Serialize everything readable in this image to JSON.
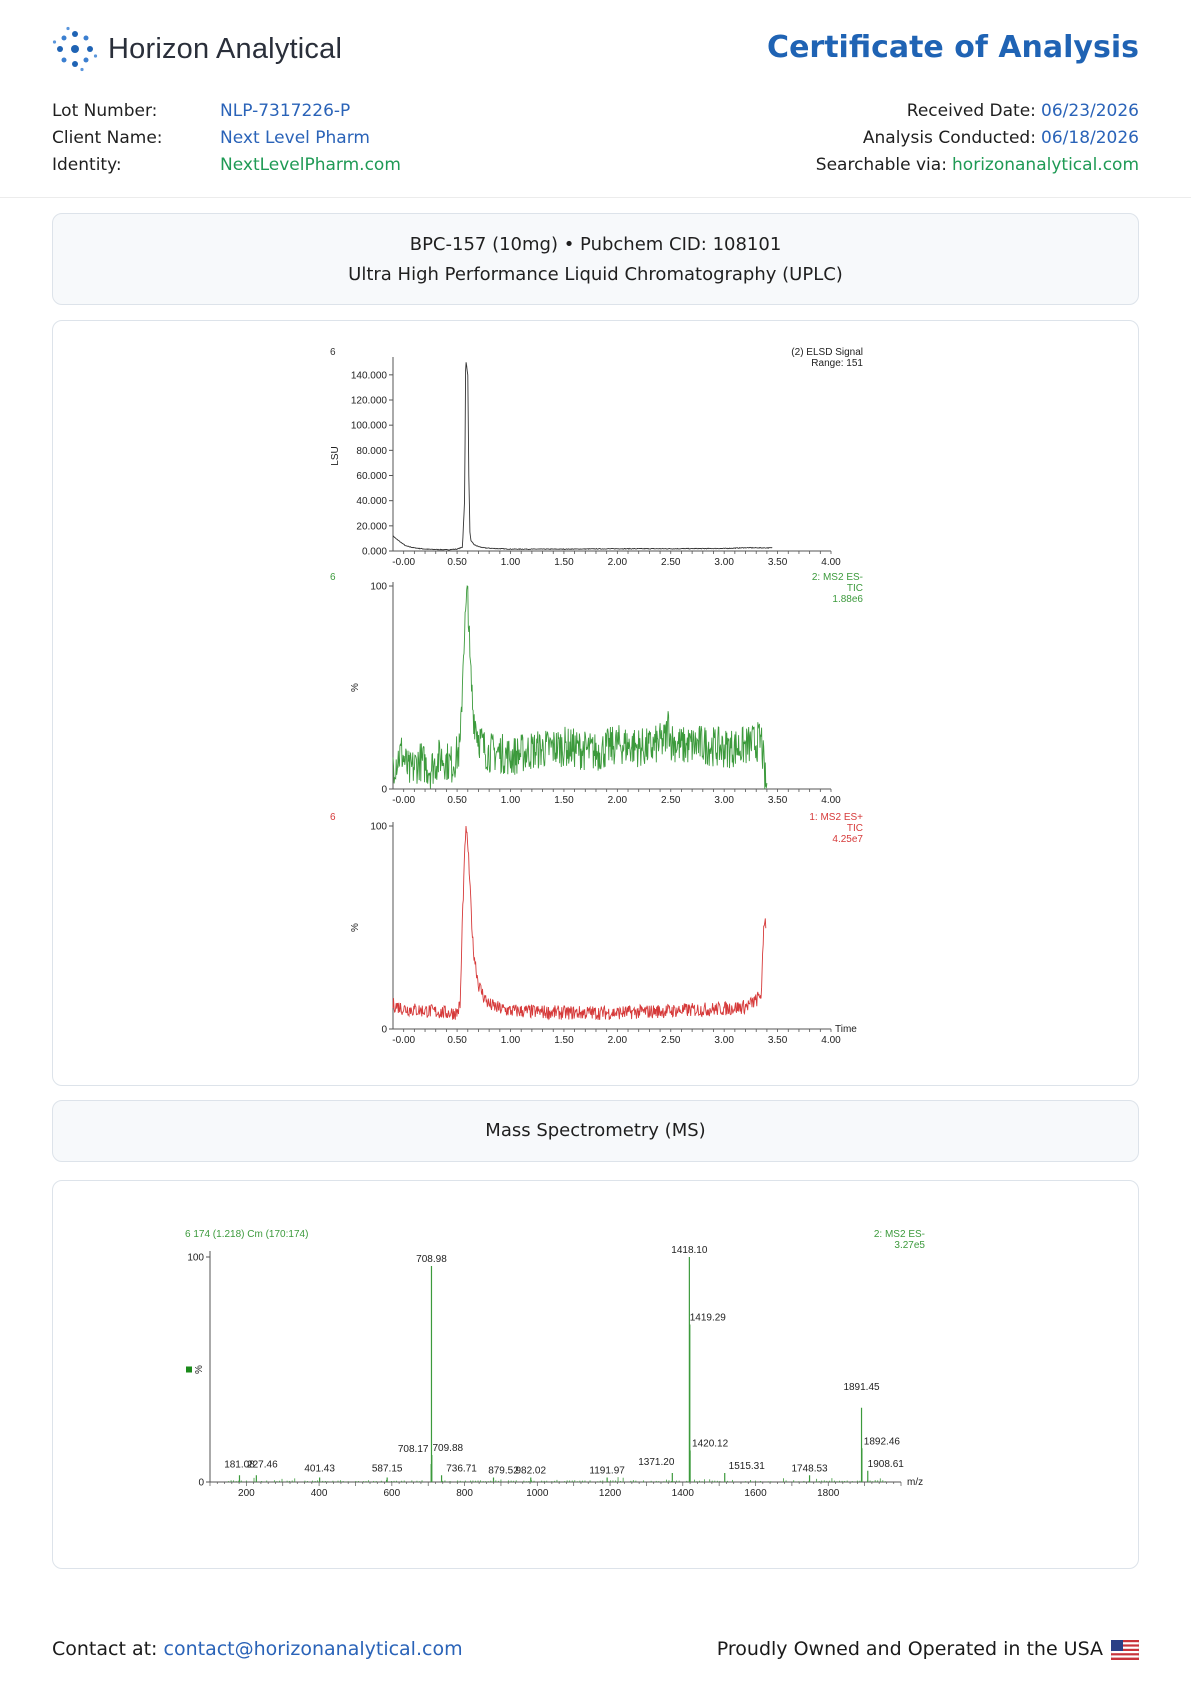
{
  "header": {
    "company_name": "Horizon Analytical",
    "document_title": "Certificate of Analysis",
    "brand_color": "#1f63b4"
  },
  "details": {
    "lot_number_label": "Lot Number:",
    "lot_number": "NLP-7317226-P",
    "client_name_label": "Client Name:",
    "client_name": "Next Level Pharm",
    "identity_label": "Identity:",
    "identity": "NextLevelPharm.com",
    "received_date_label": "Received Date:",
    "received_date": "06/23/2026",
    "analysis_conducted_label": "Analysis Conducted:",
    "analysis_conducted": "06/18/2026",
    "searchable_label": "Searchable via:",
    "searchable": "horizonanalytical.com"
  },
  "uplc_section": {
    "compound_line": "BPC-157 (10mg) • Pubchem CID: 108101",
    "method_line": "Ultra High Performance Liquid Chromatography (UPLC)"
  },
  "ms_section": {
    "title": "Mass Spectrometry (MS)"
  },
  "footer": {
    "contact_label": "Contact at:",
    "contact_email": "contact@horizonanalytical.com",
    "origin_text": "Proudly Owned and Operated in the USA",
    "flag_icon": "us-flag-icon"
  },
  "chart_data": [
    {
      "type": "line",
      "trace_number": "6",
      "legend_lines": [
        "(2) ELSD Signal",
        "Range: 151"
      ],
      "ylabel": "LSU",
      "ylim": [
        0,
        151000
      ],
      "xlim": [
        -0.1,
        4.0
      ],
      "ytick_labels": [
        "0.000",
        "20.000",
        "40.000",
        "60.000",
        "80.000",
        "100.000",
        "120.000",
        "140.000"
      ],
      "ytick_values": [
        0,
        20000,
        40000,
        60000,
        80000,
        100000,
        120000,
        140000
      ],
      "xtick_labels": [
        "-0.00",
        "0.50",
        "1.00",
        "1.50",
        "2.00",
        "2.50",
        "3.00",
        "3.50",
        "4.00"
      ],
      "color": "#333333",
      "x": [
        -0.1,
        -0.06,
        -0.02,
        0.02,
        0.1,
        0.2,
        0.3,
        0.4,
        0.5,
        0.55,
        0.57,
        0.58,
        0.585,
        0.6,
        0.61,
        0.62,
        0.63,
        0.66,
        0.7,
        0.75,
        0.85,
        1.0,
        1.5,
        2.0,
        2.5,
        3.0,
        3.2,
        3.35,
        3.45
      ],
      "y": [
        12000,
        9000,
        6500,
        4000,
        2500,
        1500,
        1200,
        1000,
        1500,
        3000,
        40000,
        148000,
        150000,
        140000,
        60000,
        15000,
        8000,
        5000,
        3500,
        2500,
        2000,
        1500,
        1500,
        1800,
        1800,
        2000,
        2600,
        2500,
        2500
      ]
    },
    {
      "type": "line",
      "trace_number": "6",
      "legend_lines": [
        "2: MS2 ES-",
        "TIC",
        "1.88e6"
      ],
      "ylabel": "%",
      "ylim": [
        0,
        100
      ],
      "xlim": [
        -0.1,
        4.0
      ],
      "ytick_labels": [
        "0",
        "100"
      ],
      "ytick_values": [
        0,
        100
      ],
      "xtick_labels": [
        "-0.00",
        "0.50",
        "1.00",
        "1.50",
        "2.00",
        "2.50",
        "3.00",
        "3.50",
        "4.00"
      ],
      "color": "#3c9a3c",
      "x": [
        -0.1,
        -0.02,
        0.05,
        0.15,
        0.25,
        0.35,
        0.45,
        0.53,
        0.56,
        0.58,
        0.6,
        0.62,
        0.65,
        0.7,
        0.75,
        0.8,
        0.9,
        1.0,
        1.2,
        1.5,
        1.8,
        2.0,
        2.3,
        2.45,
        2.48,
        2.5,
        2.6,
        2.8,
        3.0,
        3.2,
        3.35,
        3.38,
        3.4
      ],
      "y": [
        12,
        18,
        8,
        14,
        10,
        16,
        12,
        20,
        70,
        85,
        99,
        62,
        38,
        26,
        20,
        18,
        18,
        16,
        19,
        21,
        18,
        22,
        20,
        24,
        33,
        24,
        21,
        22,
        20,
        21,
        24,
        5,
        0
      ]
    },
    {
      "type": "line",
      "trace_number": "6",
      "legend_lines": [
        "1: MS2 ES+",
        "TIC",
        "4.25e7"
      ],
      "ylabel": "%",
      "ylim": [
        0,
        100
      ],
      "xlim": [
        -0.1,
        4.0
      ],
      "xlabel": "Time",
      "ytick_labels": [
        "0",
        "100"
      ],
      "ytick_values": [
        0,
        100
      ],
      "xtick_labels": [
        "-0.00",
        "0.50",
        "1.00",
        "1.50",
        "2.00",
        "2.50",
        "3.00",
        "3.50",
        "4.00"
      ],
      "color": "#d63a3a",
      "x": [
        -0.1,
        0.0,
        0.2,
        0.4,
        0.5,
        0.53,
        0.55,
        0.58,
        0.6,
        0.62,
        0.65,
        0.7,
        0.75,
        0.8,
        0.9,
        1.0,
        1.5,
        2.0,
        2.5,
        3.0,
        3.2,
        3.3,
        3.35,
        3.37,
        3.38,
        3.39
      ],
      "y": [
        12,
        10,
        9,
        8,
        8,
        12,
        55,
        98,
        92,
        70,
        40,
        22,
        16,
        12,
        10,
        9,
        8,
        8,
        9,
        10,
        11,
        14,
        18,
        50,
        55,
        52
      ]
    },
    {
      "type": "bar",
      "header": "6 174 (1.218) Cm (170:174)",
      "legend_lines": [
        "2: MS2 ES-",
        "3.27e5"
      ],
      "ylabel": "%",
      "xlabel": "m/z",
      "ylim": [
        0,
        100
      ],
      "xlim": [
        100,
        2000
      ],
      "ytick_labels": [
        "0",
        "100"
      ],
      "ytick_values": [
        0,
        100
      ],
      "xtick_labels": [
        "200",
        "400",
        "600",
        "800",
        "1000",
        "1200",
        "1400",
        "1600",
        "1800"
      ],
      "xtick_values": [
        200,
        400,
        600,
        800,
        1000,
        1200,
        1400,
        1600,
        1800
      ],
      "color": "#3c9a3c",
      "peaks": [
        {
          "mz": 181.08,
          "rel": 3,
          "label": "181.08"
        },
        {
          "mz": 227.46,
          "rel": 3,
          "label": "227.46"
        },
        {
          "mz": 401.43,
          "rel": 2,
          "label": "401.43"
        },
        {
          "mz": 587.15,
          "rel": 2,
          "label": "587.15"
        },
        {
          "mz": 708.17,
          "rel": 8,
          "label": "708.17"
        },
        {
          "mz": 708.98,
          "rel": 96,
          "label": "708.98"
        },
        {
          "mz": 709.88,
          "rel": 12,
          "label": "709.88"
        },
        {
          "mz": 736.71,
          "rel": 3,
          "label": "736.71"
        },
        {
          "mz": 879.52,
          "rel": 2,
          "label": "879.52"
        },
        {
          "mz": 982.02,
          "rel": 2,
          "label": "982.02"
        },
        {
          "mz": 1191.97,
          "rel": 2,
          "label": "1191.97"
        },
        {
          "mz": 1371.2,
          "rel": 4,
          "label": "1371.20"
        },
        {
          "mz": 1418.1,
          "rel": 100,
          "label": "1418.10"
        },
        {
          "mz": 1419.29,
          "rel": 70,
          "label": "1419.29"
        },
        {
          "mz": 1420.12,
          "rel": 14,
          "label": "1420.12"
        },
        {
          "mz": 1515.31,
          "rel": 4,
          "label": "1515.31"
        },
        {
          "mz": 1748.53,
          "rel": 3,
          "label": "1748.53"
        },
        {
          "mz": 1891.45,
          "rel": 33,
          "label": "1891.45"
        },
        {
          "mz": 1892.46,
          "rel": 15,
          "label": "1892.46"
        },
        {
          "mz": 1908.61,
          "rel": 5,
          "label": "1908.61"
        }
      ]
    }
  ]
}
